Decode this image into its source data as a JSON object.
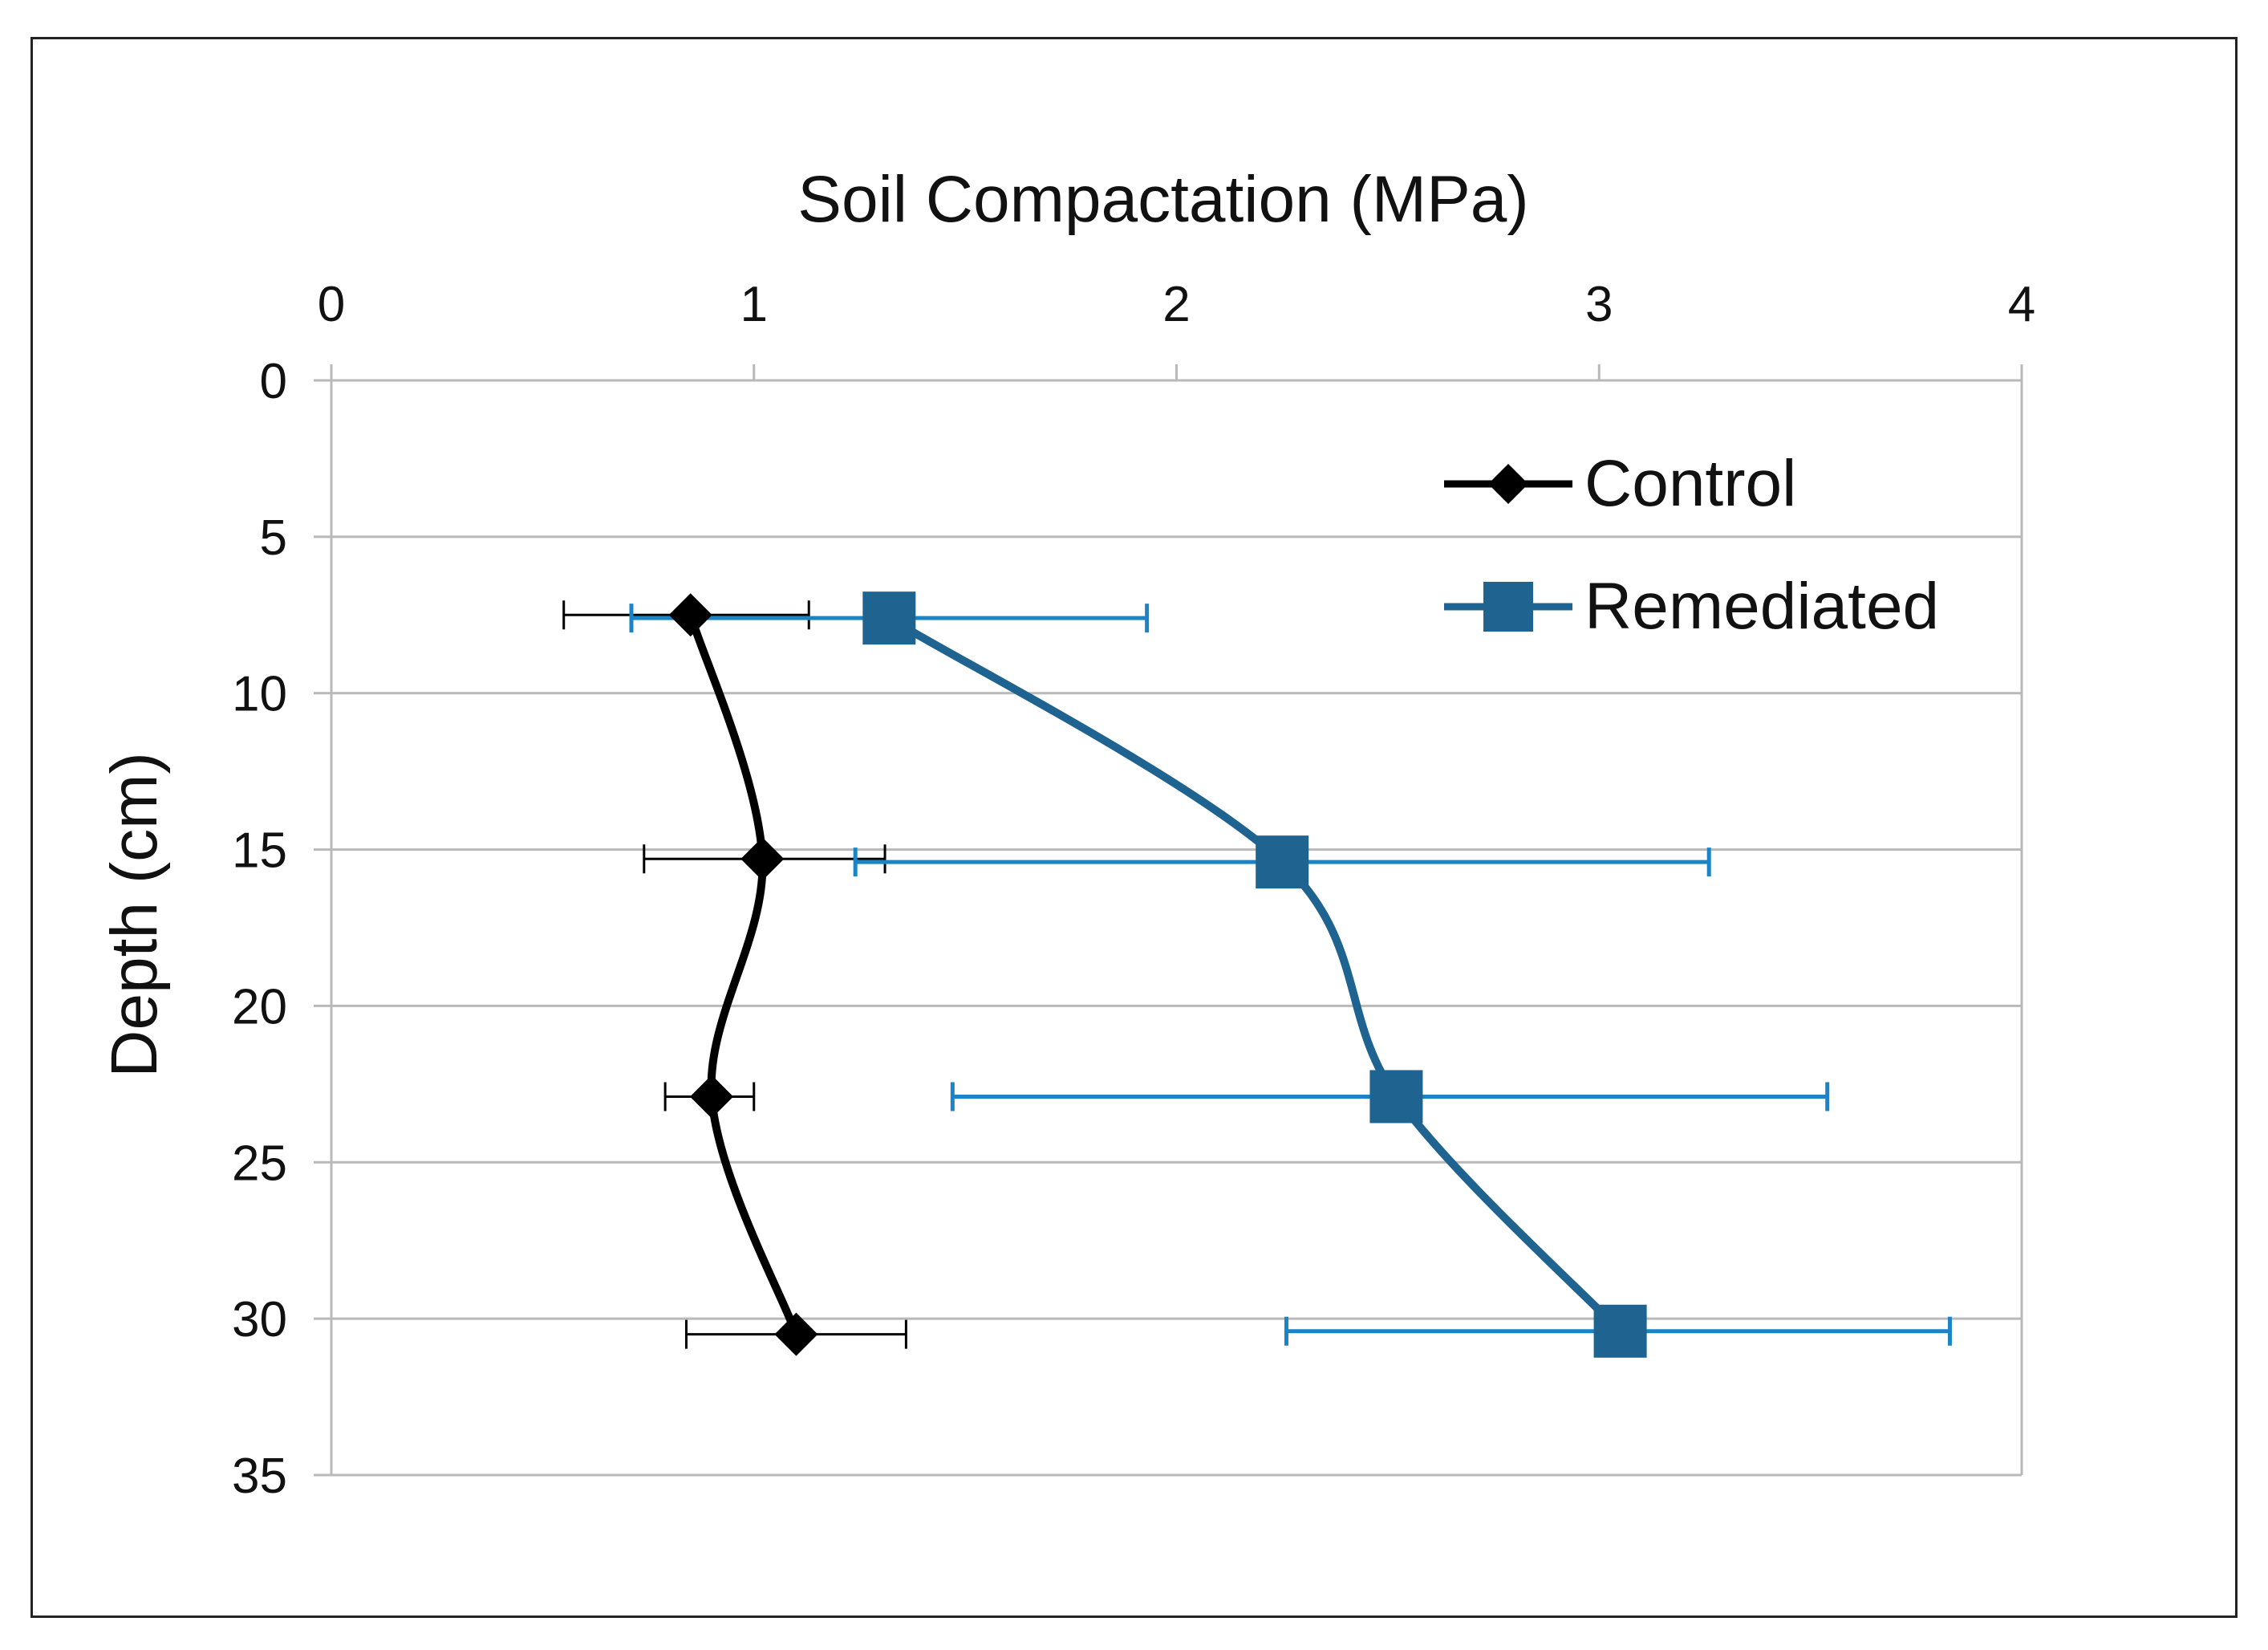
{
  "chart_data": {
    "type": "line",
    "title": "",
    "xlabel": "Soil Compactation  (MPa)",
    "ylabel": "Depth (cm)",
    "xlim": [
      0,
      4
    ],
    "ylim": [
      0,
      35
    ],
    "y_inverted": true,
    "x_axis_position": "top",
    "xticks": [
      0,
      1,
      2,
      3,
      4
    ],
    "yticks": [
      0,
      5,
      10,
      15,
      20,
      25,
      30,
      35
    ],
    "grid": "horizontal",
    "legend_position": "top-right",
    "series": [
      {
        "name": "Control",
        "color": "#000000",
        "marker": "diamond",
        "points": [
          {
            "x": 0.85,
            "y": 7.5,
            "xerr_low": 0.55,
            "xerr_high": 1.13
          },
          {
            "x": 1.02,
            "y": 15.3,
            "xerr_low": 0.74,
            "xerr_high": 1.31
          },
          {
            "x": 0.9,
            "y": 22.9,
            "xerr_low": 0.79,
            "xerr_high": 1.0
          },
          {
            "x": 1.1,
            "y": 30.5,
            "xerr_low": 0.84,
            "xerr_high": 1.36
          }
        ]
      },
      {
        "name": "Remediated",
        "color": "#1F6391",
        "errorbar_color": "#1B84C6",
        "marker": "square",
        "points": [
          {
            "x": 1.32,
            "y": 7.6,
            "xerr_low": 0.71,
            "xerr_high": 1.93
          },
          {
            "x": 2.25,
            "y": 15.4,
            "xerr_low": 1.24,
            "xerr_high": 3.26
          },
          {
            "x": 2.52,
            "y": 22.9,
            "xerr_low": 1.47,
            "xerr_high": 3.54
          },
          {
            "x": 3.05,
            "y": 30.4,
            "xerr_low": 2.26,
            "xerr_high": 3.83
          }
        ]
      }
    ]
  }
}
